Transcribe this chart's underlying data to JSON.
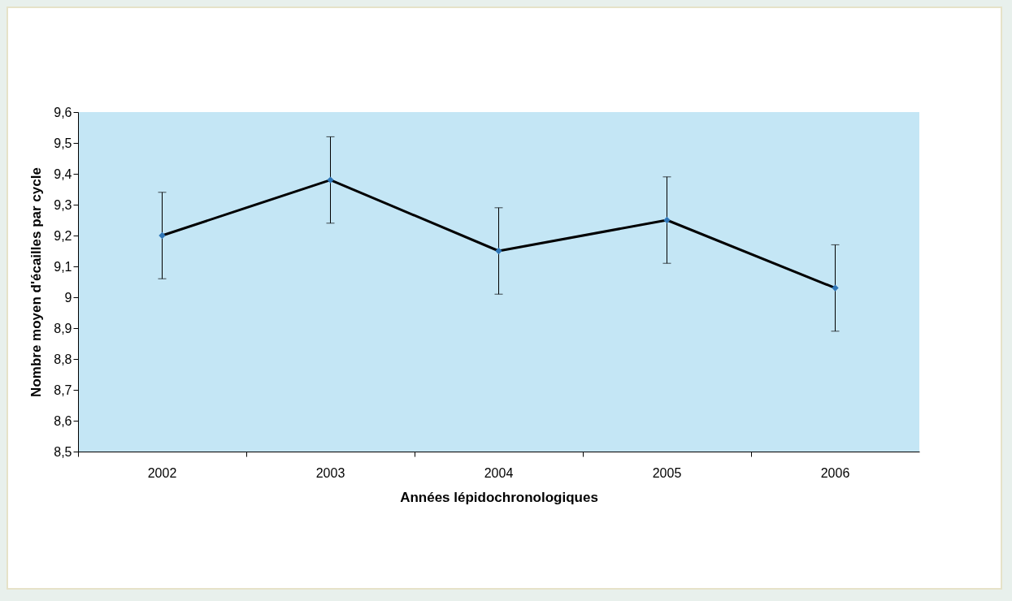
{
  "chart_data": {
    "type": "line",
    "xlabel": "Années lépidochronologiques",
    "ylabel": "Nombre moyen d'écailles par cycle",
    "categories": [
      "2002",
      "2003",
      "2004",
      "2005",
      "2006"
    ],
    "series": [
      {
        "color": "#000000",
        "colors": [
          "#2e75b6",
          "#2e75b6",
          "#2e75b6",
          "#2e75b6",
          "#2e75b6"
        ],
        "values": [
          9.2,
          9.38,
          9.15,
          9.25,
          9.03
        ],
        "errors": [
          0.14,
          0.14,
          0.14,
          0.14,
          0.14
        ]
      }
    ],
    "ylim": [
      8.5,
      9.6
    ],
    "yticks": [
      {
        "value": 8.5,
        "label": "8,5"
      },
      {
        "value": 8.6,
        "label": "8,6"
      },
      {
        "value": 8.7,
        "label": "8,7"
      },
      {
        "value": 8.8,
        "label": "8,8"
      },
      {
        "value": 8.9,
        "label": "8,9"
      },
      {
        "value": 9,
        "label": "9"
      },
      {
        "value": 9.1,
        "label": "9,1"
      },
      {
        "value": 9.2,
        "label": "9,2"
      },
      {
        "value": 9.3,
        "label": "9,3"
      },
      {
        "value": 9.4,
        "label": "9,4"
      },
      {
        "value": 9.5,
        "label": "9,5"
      },
      {
        "value": 9.6,
        "label": "9,6"
      }
    ],
    "marker": "diamond",
    "grid": false
  }
}
